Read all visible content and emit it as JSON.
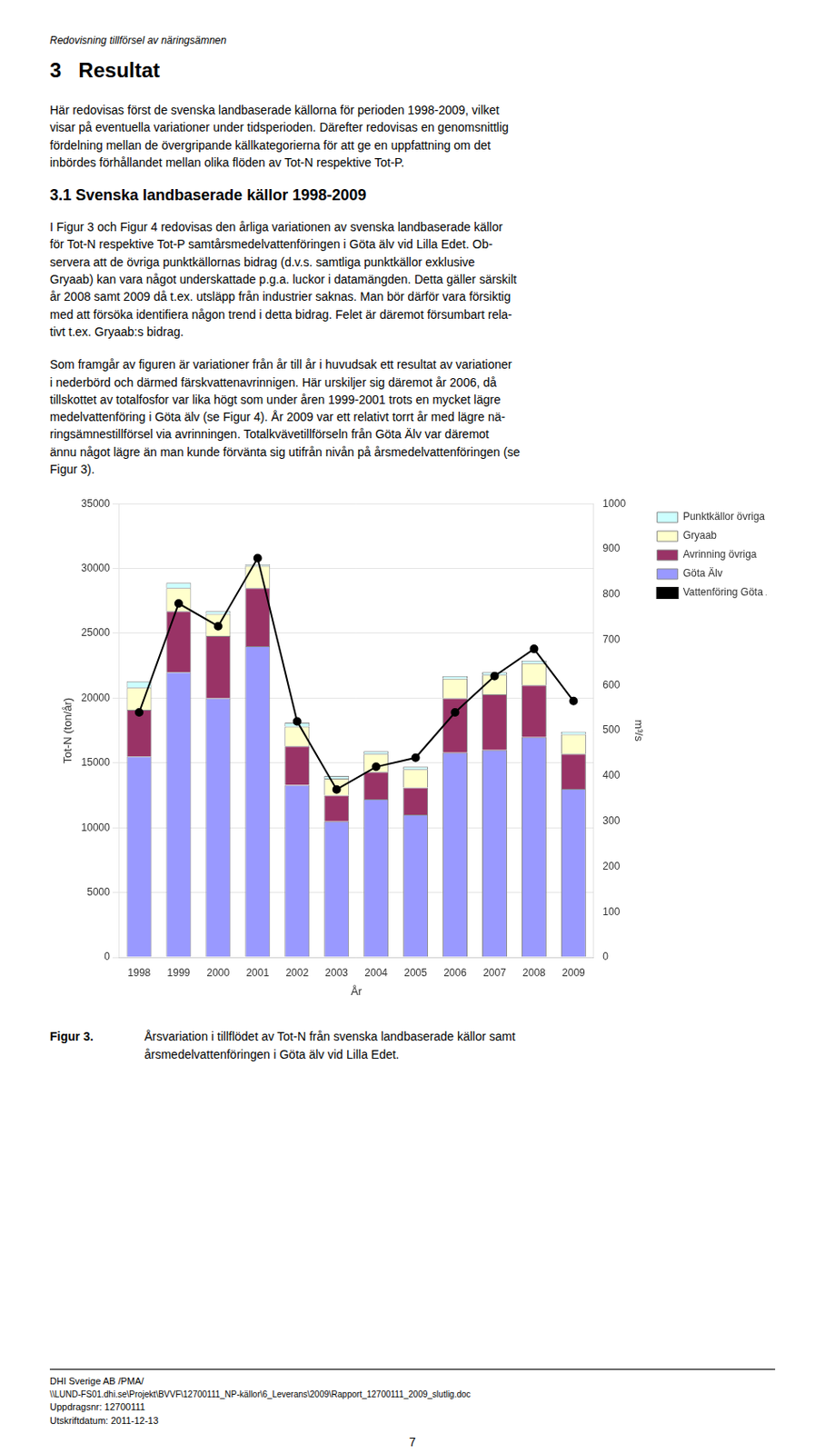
{
  "chart_data": {
    "type": "bar",
    "stacked": true,
    "categories": [
      "1998",
      "1999",
      "2000",
      "2001",
      "2002",
      "2003",
      "2004",
      "2005",
      "2006",
      "2007",
      "2008",
      "2009"
    ],
    "series": [
      {
        "name": "Göta Älv",
        "type": "bar",
        "color": "#9999FF",
        "values": [
          15500,
          22000,
          20000,
          24000,
          13300,
          10500,
          12200,
          11000,
          15800,
          16000,
          17000,
          13000
        ]
      },
      {
        "name": "Avrinning övriga",
        "type": "bar",
        "color": "#993366",
        "values": [
          3600,
          4700,
          4800,
          4500,
          3000,
          2000,
          2100,
          2100,
          4200,
          4300,
          4000,
          2700
        ]
      },
      {
        "name": "Gryaab",
        "type": "bar",
        "color": "#FFFFCC",
        "values": [
          1700,
          1800,
          1700,
          1700,
          1500,
          1300,
          1400,
          1400,
          1500,
          1500,
          1700,
          1500
        ]
      },
      {
        "name": "Punktkällor övriga",
        "type": "bar",
        "color": "#CCFFFF",
        "values": [
          500,
          400,
          200,
          100,
          300,
          200,
          200,
          200,
          200,
          200,
          200,
          200
        ]
      },
      {
        "name": "Vattenföring Göta Älv",
        "type": "line",
        "color": "#000000",
        "marker": "circle",
        "axis": "y2",
        "values": [
          540,
          780,
          730,
          880,
          520,
          370,
          420,
          440,
          540,
          620,
          680,
          565
        ]
      }
    ],
    "x_label": "År",
    "y_label": "Tot-N (ton/år)",
    "y2_label": "m³/s",
    "ylim": [
      0,
      35000
    ],
    "yticks": [
      0,
      5000,
      10000,
      15000,
      20000,
      25000,
      30000,
      35000
    ],
    "y2lim": [
      0,
      1000
    ],
    "y2ticks": [
      0,
      100,
      200,
      300,
      400,
      500,
      600,
      700,
      800,
      900,
      1000
    ],
    "grid": true,
    "legend": "right",
    "annotations": [
      "Redovisning tillförsel av näringsämnen",
      "3   Resultat",
      "Här redovisas först de svenska landbaserade källorna för perioden 1998-2009, vilket\nvisar på eventuella variationer under tidsperioden. Därefter redovisas en genomsnittlig\nfördelning mellan de övergripande källkategorierna för att ge en uppfattning om det\ninbördes förhållandet mellan olika flöden av Tot-N respektive Tot-P.",
      "3.1  Svenska landbaserade källor 1998-2009",
      "I Figur 3 och Figur 4 redovisas den årliga variationen av svenska landbaserade källor\nför Tot-N respektive Tot-P samtårsmedelvattenföringen i Göta älv vid Lilla Edet. Ob-\nservera att de övriga punktkällornas bidrag (d.v.s. samtliga punktkällor exklusive\nGryaab) kan vara något underskattade p.g.a. luckor i datamängden. Detta gäller särskilt\når 2008 samt 2009 då t.ex. utsläpp från industrier saknas. Man bör därför vara försiktig\nmed att försöka identifiera någon trend i detta bidrag. Felet är däremot försumbart rela-\ntivt t.ex. Gryaab:s bidrag.",
      "Som framgår av figuren är variationer från år till år i huvudsak ett resultat av variationer\ni nederbörd och därmed färskvattenavrinnigen. Här urskiljer sig däremot år 2006, då\ntillskottet av totalfosfor var lika högt som under åren 1999-2001 trots en mycket lägre\nmedelvattenföring i Göta älv (se Figur 4). År 2009 var ett relativt torrt år med lägre nä-\nringsämnestillförsel via avrinningen. Totalkvävetillförseln från Göta Älv var däremot\nännu något lägre än man kunde förvänta sig utifrån nivån på årsmedelvattenföringen (se\nFigur 3).",
      "Figur 3.",
      "Årsvariation i tillflödet av Tot-N från svenska landbaserade källor samt\nårsmedelvattenföringen i Göta älv vid Lilla Edet.",
      "DHI Sverige AB /PMA/",
      "\\\\LUND-FS01.dhi.se\\Projekt\\BVVF\\12700111_NP-källor\\6_Leverans\\2009\\Rapport_12700111_2009_slutlig.doc",
      "Uppdragsnr: 12700111",
      "Utskriftdatum: 2011-12-13",
      "7"
    ]
  }
}
